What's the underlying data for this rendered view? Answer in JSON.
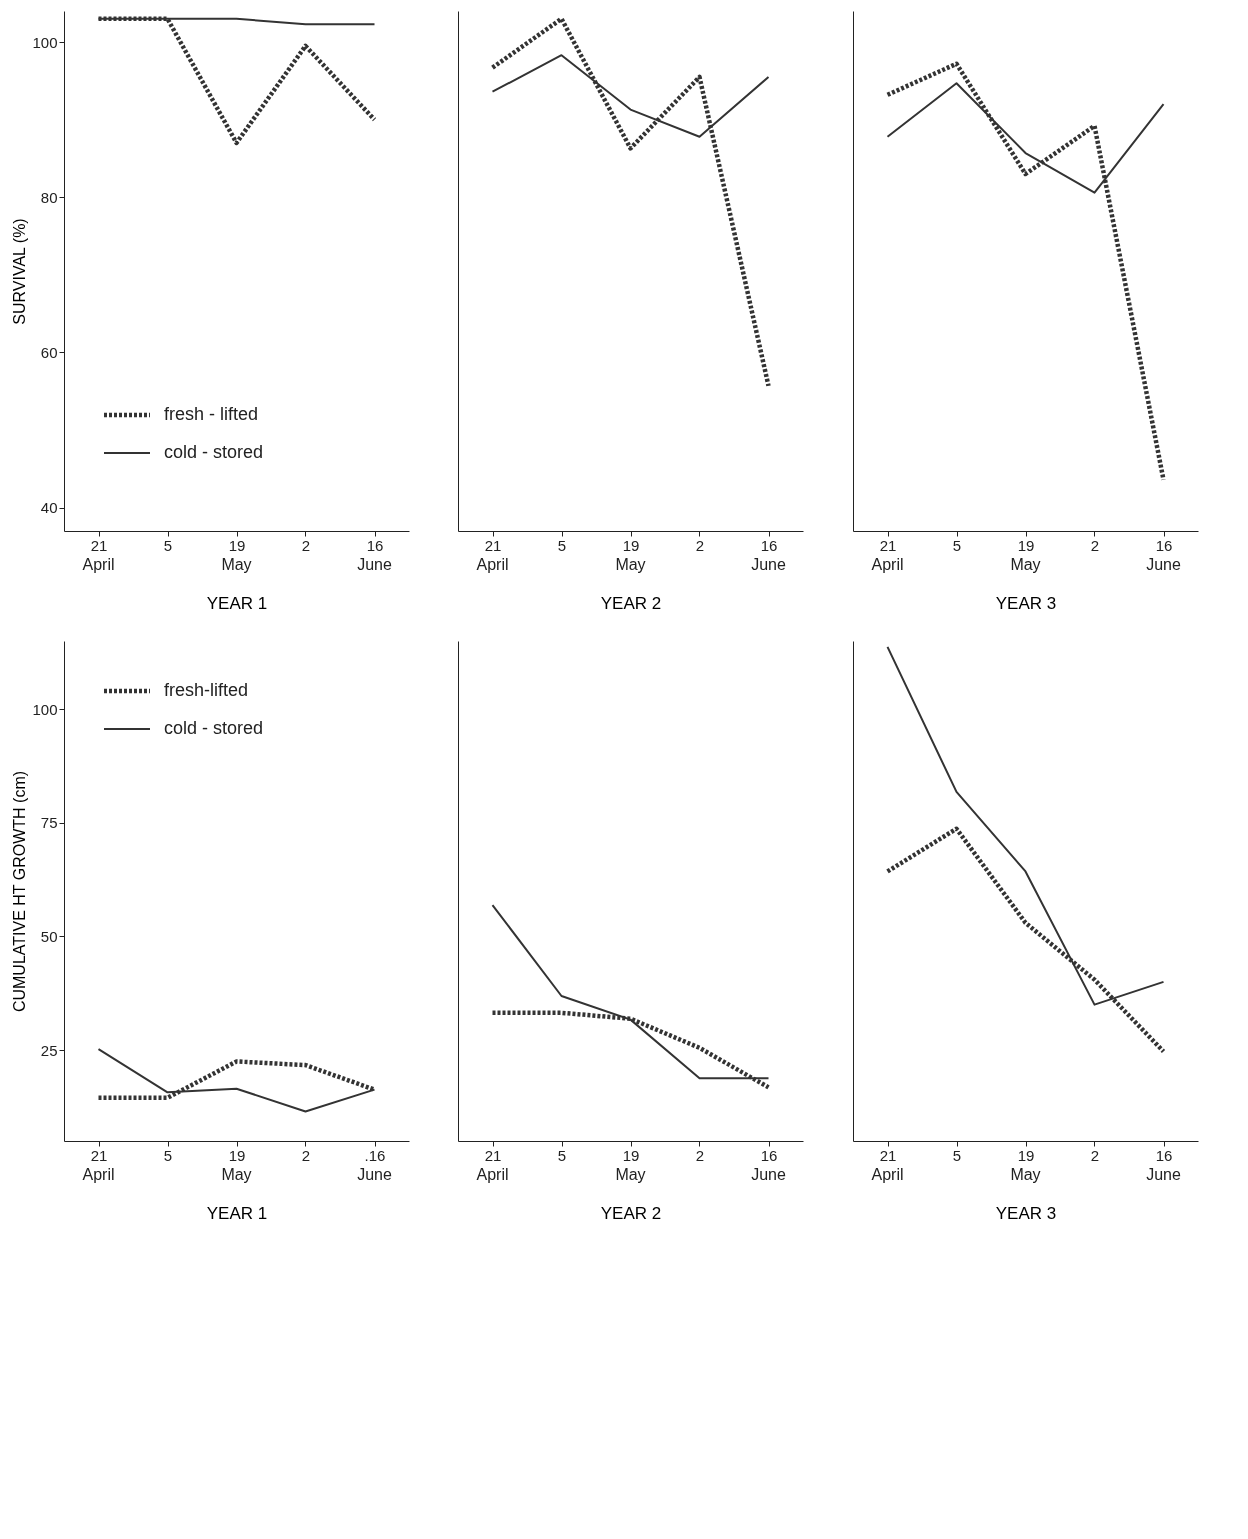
{
  "chart_data": [
    {
      "type": "line",
      "categories": [
        "21",
        "5",
        "19",
        "2",
        "16"
      ],
      "xlabel": "YEAR 1",
      "ylabel": "SURVIVAL (%)",
      "ylim": [
        37,
        104
      ],
      "yticks": [
        40,
        60,
        80,
        100
      ],
      "legend": "bottom left",
      "annotations": [
        "April",
        "May",
        "June"
      ],
      "series": [
        {
          "name": "fresh - lifted",
          "color": "#333333",
          "line_style": "dotted",
          "values": [
            103,
            103,
            87,
            99.5,
            90
          ]
        },
        {
          "name": "cold - stored",
          "color": "#333333",
          "line_style": "solid",
          "values": [
            103,
            103,
            103,
            102.3,
            102.3
          ]
        }
      ]
    },
    {
      "type": "line",
      "categories": [
        "21",
        "5",
        "19",
        "2",
        "16"
      ],
      "xlabel": "YEAR 2",
      "ylim": [
        37,
        104
      ],
      "yticks": [
        40,
        60,
        80,
        100
      ],
      "tick_labels": "x",
      "annotations": [
        "April",
        "May",
        "June"
      ],
      "series": [
        {
          "color": "#333333",
          "line_style": "dotted",
          "values": [
            96.7,
            103,
            86.3,
            95.5,
            55.7
          ]
        },
        {
          "color": "#333333",
          "line_style": "solid",
          "values": [
            93.6,
            98.3,
            91.3,
            87.8,
            95.5
          ]
        }
      ]
    },
    {
      "type": "line",
      "categories": [
        "21",
        "5",
        "19",
        "2",
        "16"
      ],
      "xlabel": "YEAR 3",
      "ylim": [
        37,
        104
      ],
      "yticks": [
        40,
        60,
        80,
        100
      ],
      "tick_labels": "x",
      "annotations": [
        "April",
        "May",
        "June"
      ],
      "series": [
        {
          "color": "#333333",
          "line_style": "dotted",
          "values": [
            93.2,
            97.2,
            83,
            89.2,
            43.6
          ]
        },
        {
          "color": "#333333",
          "line_style": "solid",
          "values": [
            87.8,
            94.7,
            85.7,
            80.6,
            92
          ]
        }
      ]
    },
    {
      "type": "line",
      "categories": [
        "21",
        "5",
        "19",
        "2",
        ".16"
      ],
      "xlabel": "YEAR 1",
      "ylabel": "CUMULATIVE HT GROWTH (cm)",
      "ylim": [
        5,
        115
      ],
      "yticks": [
        25,
        50,
        75,
        100
      ],
      "legend": "top left",
      "annotations": [
        "April",
        "May",
        "June"
      ],
      "series": [
        {
          "name": "fresh-lifted",
          "color": "#333333",
          "line_style": "dotted",
          "values": [
            14.5,
            14.5,
            22.5,
            21.7,
            16.3
          ]
        },
        {
          "name": "cold - stored",
          "color": "#333333",
          "line_style": "solid",
          "values": [
            25.2,
            15.7,
            16.5,
            11.5,
            16.3
          ]
        }
      ]
    },
    {
      "type": "line",
      "categories": [
        "21",
        "5",
        "19",
        "2",
        "16"
      ],
      "xlabel": "YEAR 2",
      "ylim": [
        5,
        115
      ],
      "yticks": [
        25,
        50,
        75,
        100
      ],
      "tick_labels": "x",
      "annotations": [
        "April",
        "May",
        "June"
      ],
      "series": [
        {
          "color": "#333333",
          "line_style": "dotted",
          "values": [
            33.2,
            33.2,
            31.9,
            25.5,
            16.8
          ]
        },
        {
          "color": "#333333",
          "line_style": "solid",
          "values": [
            56.9,
            36.9,
            31.7,
            18.8,
            18.8
          ]
        }
      ]
    },
    {
      "type": "line",
      "categories": [
        "21",
        "5",
        "19",
        "2",
        "16"
      ],
      "xlabel": "YEAR 3",
      "ylim": [
        5,
        115
      ],
      "yticks": [
        25,
        50,
        75,
        100
      ],
      "tick_labels": "x",
      "annotations": [
        "April",
        "May",
        "June"
      ],
      "series": [
        {
          "color": "#333333",
          "line_style": "dotted",
          "values": [
            64.3,
            73.7,
            53,
            40.5,
            24.7
          ]
        },
        {
          "color": "#333333",
          "line_style": "solid",
          "values": [
            113.7,
            81.8,
            64.3,
            35,
            40
          ]
        }
      ]
    }
  ]
}
